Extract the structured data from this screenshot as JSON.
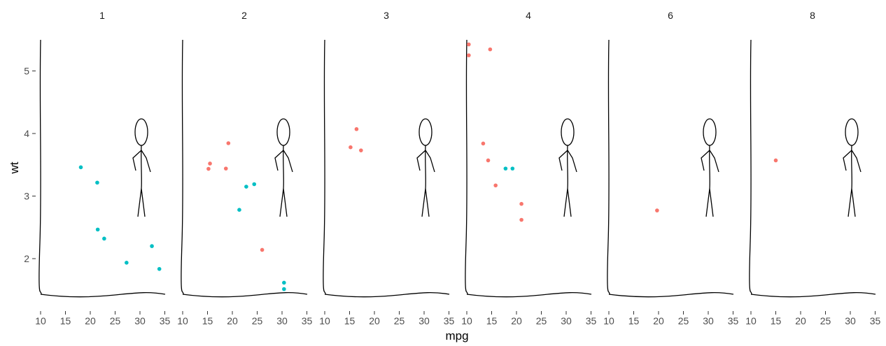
{
  "chart_data": {
    "type": "scatter",
    "title": "",
    "xlabel": "mpg",
    "ylabel": "wt",
    "facet_var_labels": [
      "1",
      "2",
      "3",
      "4",
      "6",
      "8"
    ],
    "xlim": [
      10,
      35
    ],
    "ylim": [
      1.4,
      5.5
    ],
    "x_ticks": [
      10,
      15,
      20,
      25,
      30,
      35
    ],
    "y_ticks": [
      2,
      3,
      4,
      5
    ],
    "grid": false,
    "legend": "none",
    "series_colors": {
      "red": "#F8766D",
      "teal": "#00BFC4"
    },
    "panels": [
      {
        "label": "1",
        "points": [
          {
            "x": 18.1,
            "y": 3.46,
            "color": "teal"
          },
          {
            "x": 21.4,
            "y": 3.215,
            "color": "teal"
          },
          {
            "x": 21.5,
            "y": 2.465,
            "color": "teal"
          },
          {
            "x": 22.8,
            "y": 2.32,
            "color": "teal"
          },
          {
            "x": 27.3,
            "y": 1.935,
            "color": "teal"
          },
          {
            "x": 32.4,
            "y": 2.2,
            "color": "teal"
          },
          {
            "x": 33.9,
            "y": 1.835,
            "color": "teal"
          }
        ]
      },
      {
        "label": "2",
        "points": [
          {
            "x": 15.2,
            "y": 3.435,
            "color": "red"
          },
          {
            "x": 15.5,
            "y": 3.52,
            "color": "red"
          },
          {
            "x": 18.7,
            "y": 3.44,
            "color": "red"
          },
          {
            "x": 19.2,
            "y": 3.845,
            "color": "red"
          },
          {
            "x": 26.0,
            "y": 2.14,
            "color": "red"
          },
          {
            "x": 21.4,
            "y": 2.78,
            "color": "teal"
          },
          {
            "x": 22.8,
            "y": 3.15,
            "color": "teal"
          },
          {
            "x": 24.4,
            "y": 3.19,
            "color": "teal"
          },
          {
            "x": 30.4,
            "y": 1.615,
            "color": "teal"
          },
          {
            "x": 30.4,
            "y": 1.513,
            "color": "teal"
          }
        ]
      },
      {
        "label": "3",
        "points": [
          {
            "x": 15.2,
            "y": 3.78,
            "color": "red"
          },
          {
            "x": 16.4,
            "y": 4.07,
            "color": "red"
          },
          {
            "x": 17.3,
            "y": 3.73,
            "color": "red"
          }
        ]
      },
      {
        "label": "4",
        "points": [
          {
            "x": 10.4,
            "y": 5.424,
            "color": "red"
          },
          {
            "x": 10.4,
            "y": 5.25,
            "color": "red"
          },
          {
            "x": 14.7,
            "y": 5.345,
            "color": "red"
          },
          {
            "x": 13.3,
            "y": 3.84,
            "color": "red"
          },
          {
            "x": 14.3,
            "y": 3.57,
            "color": "red"
          },
          {
            "x": 15.8,
            "y": 3.17,
            "color": "red"
          },
          {
            "x": 21.0,
            "y": 2.875,
            "color": "red"
          },
          {
            "x": 21.0,
            "y": 2.62,
            "color": "red"
          },
          {
            "x": 17.8,
            "y": 3.44,
            "color": "teal"
          },
          {
            "x": 19.2,
            "y": 3.44,
            "color": "teal"
          }
        ]
      },
      {
        "label": "6",
        "points": [
          {
            "x": 19.7,
            "y": 2.77,
            "color": "red"
          }
        ]
      },
      {
        "label": "8",
        "points": [
          {
            "x": 15.0,
            "y": 3.57,
            "color": "red"
          }
        ]
      }
    ]
  }
}
